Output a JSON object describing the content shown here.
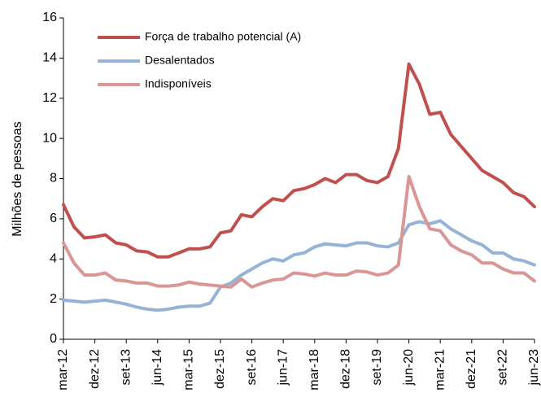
{
  "chart_data": {
    "type": "line",
    "y_label": "Milhões de pessoas",
    "categories": [
      "mar-12",
      null,
      null,
      "dez-12",
      null,
      null,
      "set-13",
      null,
      null,
      "jun-14",
      null,
      null,
      "mar-15",
      null,
      null,
      "dez-15",
      null,
      null,
      "set-16",
      null,
      null,
      "jun-17",
      null,
      null,
      "mar-18",
      null,
      null,
      "dez-18",
      null,
      null,
      "set-19",
      null,
      null,
      "jun-20",
      null,
      null,
      "mar-21",
      null,
      null,
      "dez-21",
      null,
      null,
      "set-22",
      null,
      null,
      "jun-23"
    ],
    "series": [
      {
        "name": "Força de trabalho potencial (A)",
        "color": "#c0504d",
        "values": [
          6.7,
          5.6,
          5.05,
          5.1,
          5.2,
          4.8,
          4.7,
          4.4,
          4.35,
          4.1,
          4.1,
          4.3,
          4.5,
          4.5,
          4.6,
          5.3,
          5.4,
          6.2,
          6.1,
          6.6,
          7.0,
          6.9,
          7.4,
          7.5,
          7.7,
          8.0,
          7.8,
          8.2,
          8.2,
          7.9,
          7.8,
          8.1,
          9.5,
          13.7,
          12.7,
          11.2,
          11.3,
          10.2,
          9.6,
          9.0,
          8.4,
          8.1,
          7.8,
          7.3,
          7.1,
          6.6
        ]
      },
      {
        "name": "Desalentados",
        "color": "#95b3d7",
        "values": [
          1.95,
          1.9,
          1.85,
          1.9,
          1.95,
          1.85,
          1.75,
          1.6,
          1.5,
          1.45,
          1.5,
          1.6,
          1.65,
          1.65,
          1.8,
          2.6,
          2.8,
          3.2,
          3.5,
          3.8,
          4.0,
          3.9,
          4.2,
          4.3,
          4.6,
          4.75,
          4.7,
          4.65,
          4.8,
          4.8,
          4.65,
          4.6,
          4.8,
          5.7,
          5.85,
          5.75,
          5.9,
          5.5,
          5.2,
          4.9,
          4.7,
          4.3,
          4.3,
          4.0,
          3.9,
          3.7
        ]
      },
      {
        "name": "Indisponíveis",
        "color": "#d99694",
        "values": [
          4.8,
          3.8,
          3.2,
          3.2,
          3.3,
          2.95,
          2.9,
          2.8,
          2.8,
          2.65,
          2.65,
          2.7,
          2.85,
          2.75,
          2.7,
          2.65,
          2.6,
          3.0,
          2.6,
          2.8,
          2.95,
          3.0,
          3.3,
          3.25,
          3.15,
          3.3,
          3.2,
          3.2,
          3.4,
          3.35,
          3.2,
          3.3,
          3.7,
          8.1,
          6.6,
          5.5,
          5.4,
          4.7,
          4.4,
          4.2,
          3.8,
          3.8,
          3.5,
          3.3,
          3.3,
          2.9
        ]
      }
    ],
    "ylim": [
      0,
      16
    ],
    "yticks": [
      0,
      2,
      4,
      6,
      8,
      10,
      12,
      14,
      16
    ],
    "legend": "upper-left"
  }
}
